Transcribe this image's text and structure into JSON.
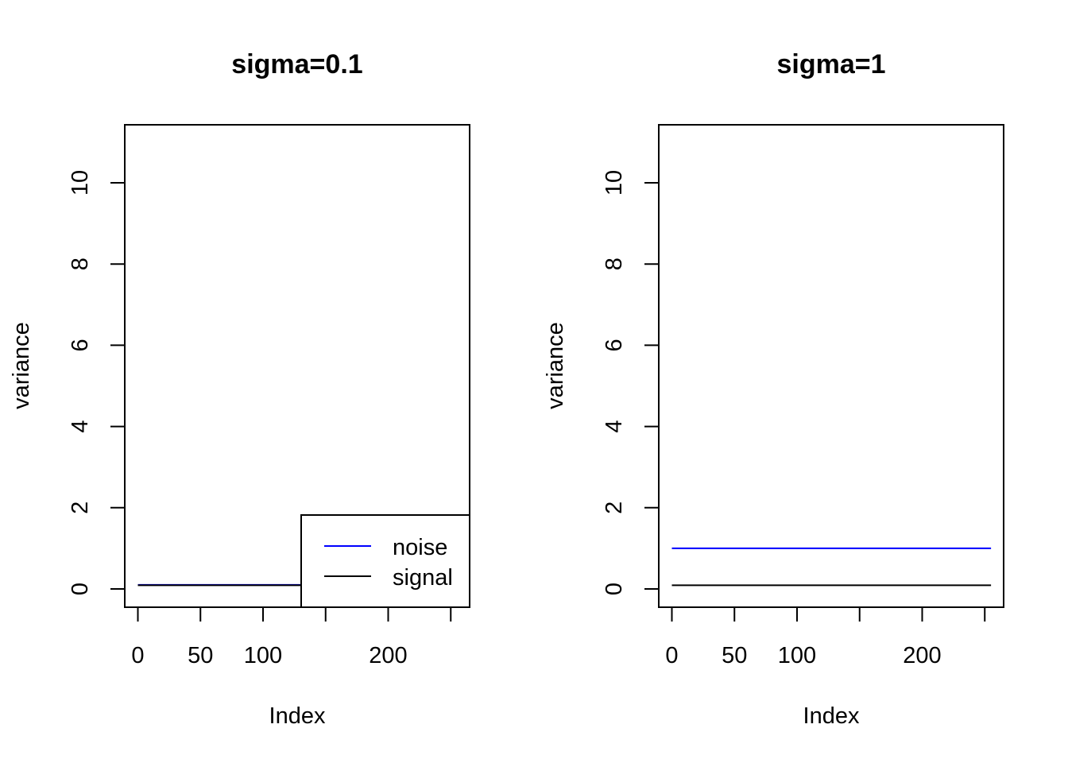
{
  "chart_data": [
    {
      "type": "line",
      "title": "sigma=0.1",
      "xlabel": "Index",
      "ylabel": "variance",
      "xlim": [
        0,
        270
      ],
      "ylim": [
        0,
        11
      ],
      "x_ticks": [
        0,
        50,
        100,
        150,
        200,
        250
      ],
      "x_tick_labels": [
        "0",
        "50",
        "100",
        "",
        "200",
        ""
      ],
      "y_ticks": [
        0,
        2,
        4,
        6,
        8,
        10
      ],
      "y_tick_labels": [
        "0",
        "2",
        "4",
        "6",
        "8",
        "10"
      ],
      "x": [
        1,
        256
      ],
      "series": [
        {
          "name": "noise",
          "color": "#0000ff",
          "values": [
            0.1,
            0.1
          ]
        },
        {
          "name": "signal",
          "color": "#000000",
          "values": [
            0.09,
            0.09
          ]
        }
      ],
      "legend": {
        "position": "bottom-right",
        "entries": [
          {
            "label": "noise",
            "color": "#0000ff"
          },
          {
            "label": "signal",
            "color": "#000000"
          }
        ]
      }
    },
    {
      "type": "line",
      "title": "sigma=1",
      "xlabel": "Index",
      "ylabel": "variance",
      "xlim": [
        0,
        270
      ],
      "ylim": [
        0,
        11
      ],
      "x_ticks": [
        0,
        50,
        100,
        150,
        200,
        250
      ],
      "x_tick_labels": [
        "0",
        "50",
        "100",
        "",
        "200",
        ""
      ],
      "y_ticks": [
        0,
        2,
        4,
        6,
        8,
        10
      ],
      "y_tick_labels": [
        "0",
        "2",
        "4",
        "6",
        "8",
        "10"
      ],
      "x": [
        1,
        256
      ],
      "series": [
        {
          "name": "noise",
          "color": "#0000ff",
          "values": [
            1.0,
            1.0
          ]
        },
        {
          "name": "signal",
          "color": "#000000",
          "values": [
            0.09,
            0.09
          ]
        }
      ]
    }
  ]
}
